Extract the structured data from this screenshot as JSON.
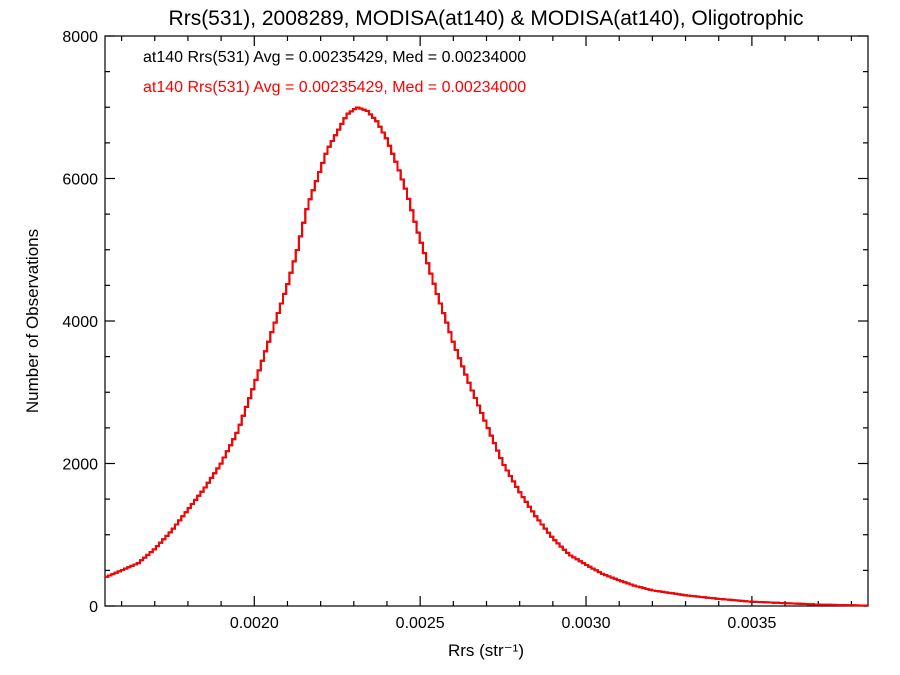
{
  "chart_data": {
    "type": "histogram",
    "title": "Rrs(531), 2008289, MODISA(at140) & MODISA(at140), Oligotrophic",
    "xlabel": "Rrs (str⁻¹)",
    "ylabel": "Number of Observations",
    "xlim": [
      0.00155,
      0.00385
    ],
    "ylim": [
      0,
      8000
    ],
    "x_ticks": [
      {
        "value": 0.002,
        "label": "0.0020"
      },
      {
        "value": 0.0025,
        "label": "0.0025"
      },
      {
        "value": 0.003,
        "label": "0.0030"
      },
      {
        "value": 0.0035,
        "label": "0.0035"
      }
    ],
    "y_ticks": [
      {
        "value": 0,
        "label": "0"
      },
      {
        "value": 2000,
        "label": "2000"
      },
      {
        "value": 4000,
        "label": "4000"
      },
      {
        "value": 6000,
        "label": "6000"
      },
      {
        "value": 8000,
        "label": "8000"
      }
    ],
    "annotations": [
      {
        "text": "at140 Rrs(531) Avg = 0.00235429, Med = 0.00234000",
        "color": "#000000"
      },
      {
        "text": "at140 Rrs(531) Avg = 0.00235429, Med = 0.00234000",
        "color": "#ff0000"
      }
    ],
    "series": [
      {
        "color": "#ff0000",
        "x": [
          0.00155,
          0.00165,
          0.0017,
          0.00175,
          0.0018,
          0.00185,
          0.0019,
          0.00195,
          0.002,
          0.00205,
          0.0021,
          0.00213,
          0.00216,
          0.00219,
          0.00222,
          0.00225,
          0.00228,
          0.00231,
          0.00234,
          0.00237,
          0.0024,
          0.00243,
          0.00246,
          0.00249,
          0.00252,
          0.00255,
          0.0026,
          0.00265,
          0.0027,
          0.00275,
          0.0028,
          0.00285,
          0.0029,
          0.00295,
          0.003,
          0.00305,
          0.0031,
          0.00315,
          0.0032,
          0.0033,
          0.0034,
          0.0035,
          0.0036,
          0.0037,
          0.0038,
          0.00385
        ],
        "y": [
          400,
          600,
          800,
          1050,
          1350,
          1650,
          2000,
          2450,
          3100,
          3800,
          4500,
          5000,
          5600,
          6000,
          6400,
          6650,
          6900,
          7000,
          6950,
          6800,
          6550,
          6200,
          5800,
          5300,
          4850,
          4400,
          3700,
          3100,
          2550,
          2000,
          1600,
          1250,
          950,
          720,
          580,
          450,
          360,
          280,
          220,
          150,
          100,
          60,
          40,
          20,
          10,
          5
        ]
      },
      {
        "color": "#000000",
        "x": [
          0.00155,
          0.00165,
          0.0017,
          0.00175,
          0.0018,
          0.00185,
          0.0019,
          0.00195,
          0.002,
          0.00205,
          0.0021,
          0.00213,
          0.00216,
          0.00219,
          0.00222,
          0.00225,
          0.00228,
          0.00231,
          0.00234,
          0.00237,
          0.0024,
          0.00243,
          0.00246,
          0.00249,
          0.00252,
          0.00255,
          0.0026,
          0.00265,
          0.0027,
          0.00275,
          0.0028,
          0.00285,
          0.0029,
          0.00295,
          0.003,
          0.00305,
          0.0031,
          0.00315,
          0.0032,
          0.0033,
          0.0034,
          0.0035,
          0.0036,
          0.0037,
          0.0038,
          0.00385
        ],
        "y": [
          400,
          600,
          800,
          1050,
          1350,
          1650,
          2000,
          2450,
          3100,
          3800,
          4500,
          5000,
          5600,
          6000,
          6400,
          6650,
          6900,
          7000,
          6950,
          6800,
          6550,
          6200,
          5800,
          5300,
          4850,
          4400,
          3700,
          3100,
          2550,
          2000,
          1600,
          1250,
          950,
          720,
          580,
          450,
          360,
          280,
          220,
          150,
          100,
          60,
          40,
          20,
          10,
          5
        ]
      }
    ]
  }
}
